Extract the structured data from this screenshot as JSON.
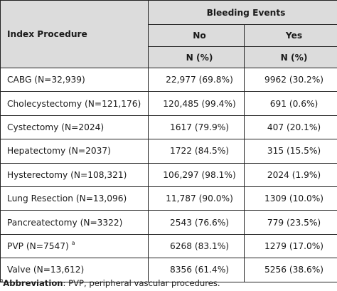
{
  "header": {
    "col1": "Index Procedure",
    "group": "Bleeding Events",
    "no": "No",
    "yes": "Yes",
    "unit_no": "N (%)",
    "unit_yes": "N (%)"
  },
  "rows": [
    {
      "procedure": "CABG (N=32,939)",
      "sup": "",
      "no": "22,977 (69.8%)",
      "yes": "9962 (30.2%)"
    },
    {
      "procedure": "Cholecystectomy (N=121,176)",
      "sup": "",
      "no": "120,485 (99.4%)",
      "yes": "691 (0.6%)"
    },
    {
      "procedure": "Cystectomy (N=2024)",
      "sup": "",
      "no": "1617 (79.9%)",
      "yes": "407 (20.1%)"
    },
    {
      "procedure": "Hepatectomy (N=2037)",
      "sup": "",
      "no": "1722 (84.5%)",
      "yes": "315 (15.5%)"
    },
    {
      "procedure": "Hysterectomy (N=108,321)",
      "sup": "",
      "no": "106,297 (98.1%)",
      "yes": "2024 (1.9%)"
    },
    {
      "procedure": "Lung Resection (N=13,096)",
      "sup": "",
      "no": "11,787 (90.0%)",
      "yes": "1309 (10.0%)"
    },
    {
      "procedure": "Pancreatectomy (N=3322)",
      "sup": "",
      "no": "2543 (76.6%)",
      "yes": "779 (23.5%)"
    },
    {
      "procedure": "PVP (N=7547)",
      "sup": "a",
      "no": "6268 (83.1%)",
      "yes": "1279 (17.0%)"
    },
    {
      "procedure": "Valve (N=13,612)",
      "sup": "",
      "no": "8356 (61.4%)",
      "yes": "5256 (38.6%)"
    }
  ],
  "footnote": {
    "marker": "a",
    "label": "Abbreviation",
    "text": ": PVP, peripheral vascular procedures."
  }
}
